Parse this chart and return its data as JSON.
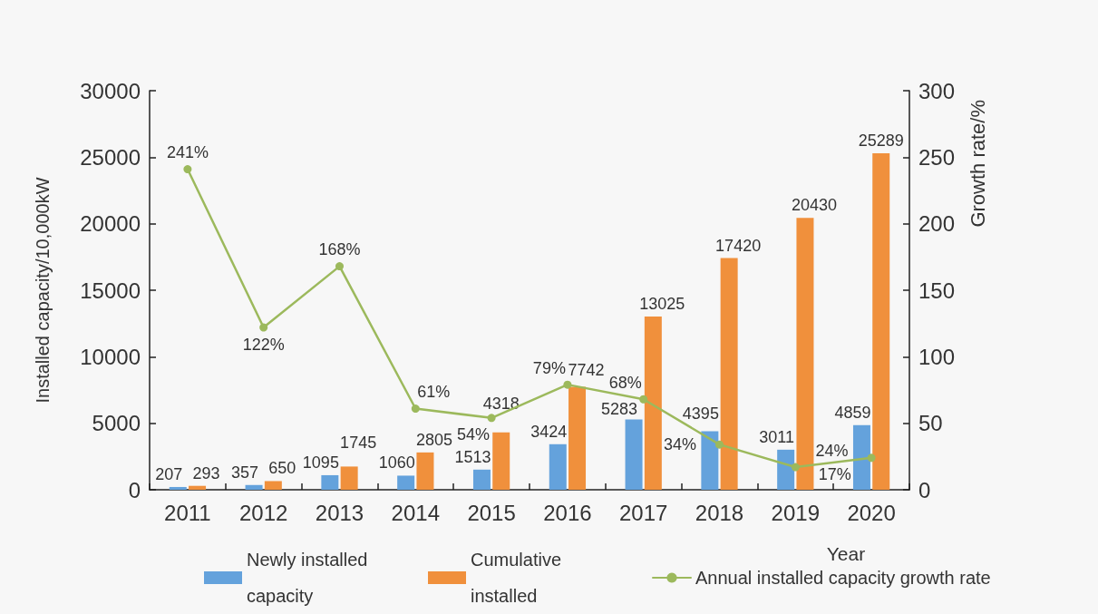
{
  "chart_data": {
    "type": "bar",
    "categories": [
      "2011",
      "2012",
      "2013",
      "2014",
      "2015",
      "2016",
      "2017",
      "2018",
      "2019",
      "2020"
    ],
    "series": [
      {
        "name": "Newly installed capacity",
        "color": "#64a2dc",
        "values": [
          207,
          357,
          1095,
          1060,
          1513,
          3424,
          5283,
          4395,
          3011,
          4859
        ]
      },
      {
        "name": "Cumulative installed",
        "color": "#f0903c",
        "values": [
          293,
          650,
          1745,
          2805,
          4318,
          7742,
          13025,
          17420,
          20430,
          25289
        ]
      },
      {
        "name": "Annual installed capacity growth rate",
        "type": "line",
        "axis": "y2",
        "color": "#9cb95c",
        "values": [
          241,
          122,
          168,
          61,
          54,
          79,
          68,
          34,
          17,
          24
        ],
        "value_labels": [
          "241%",
          "122%",
          "168%",
          "61%",
          "54%",
          "79%",
          "68%",
          "34%",
          "17%",
          "24%"
        ]
      }
    ],
    "xlabel": "Year",
    "ylabel": "Installed capacity/10,000kW",
    "y2label": "Growth rate/%",
    "ylim": [
      0,
      30000
    ],
    "yticks": [
      0,
      5000,
      10000,
      15000,
      20000,
      25000,
      30000
    ],
    "y2lim": [
      0,
      300
    ],
    "y2ticks": [
      0,
      50,
      100,
      150,
      200,
      250,
      300
    ],
    "data_labels": true,
    "legend": "bottom",
    "marker": "circle",
    "line_style": "solid"
  }
}
